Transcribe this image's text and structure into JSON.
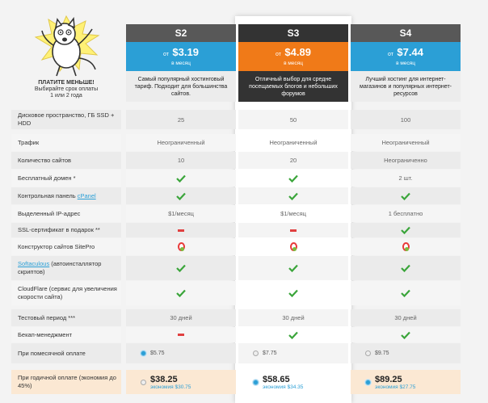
{
  "promo": {
    "title": "ПЛАТИТЕ МЕНЬШЕ!",
    "subtitle": "Выбирайте срок оплаты",
    "subtitle2": "1 или 2 года"
  },
  "plans": [
    {
      "name": "S2",
      "from": "от",
      "price": "$3.19",
      "per": "в месяц",
      "desc": "Самый популярный хостинговый тариф. Подходит для большинства сайтов."
    },
    {
      "name": "S3",
      "from": "от",
      "price": "$4.89",
      "per": "в месяц",
      "desc": "Отличный выбор для средне посещаемых блогов и небольших форумов"
    },
    {
      "name": "S4",
      "from": "от",
      "price": "$7.44",
      "per": "в месяц",
      "desc": "Лучший хостинг для интернет-магазинов и популярных интернет-ресурсов"
    }
  ],
  "rows": {
    "disk": {
      "label": "Дисковое пространство, ГБ SSD + HDD",
      "v": [
        "25",
        "50",
        "100"
      ]
    },
    "traffic": {
      "label": "Трафик",
      "v": [
        "Неограниченный",
        "Неограниченный",
        "Неограниченный"
      ]
    },
    "sites": {
      "label": "Количество сайтов",
      "v": [
        "10",
        "20",
        "Неограниченно"
      ]
    },
    "domain": {
      "label": "Бесплатный домен *",
      "v3": "2 шт."
    },
    "cpanel": {
      "label": "Контрольная панель ",
      "link": "cPanel"
    },
    "ip": {
      "label": "Выделенный IP-адрес",
      "v": [
        "$1/месяц",
        "$1/месяц",
        "1 бесплатно"
      ]
    },
    "ssl": {
      "label": "SSL-сертификат в подарок **"
    },
    "sitepro": {
      "label": "Конструктор сайтов SitePro"
    },
    "softaculous": {
      "link": "Softaculous",
      "label": " (автоинсталлятор скриптов)"
    },
    "cloudflare": {
      "label": "CloudFlare (сервис для увеличения скорости сайта)"
    },
    "trial": {
      "label": "Тестовый период ***",
      "v": [
        "30 дней",
        "30 дней",
        "30 дней"
      ]
    },
    "backup": {
      "label": "Бекап-менеджмент"
    },
    "monthly": {
      "label": "При помесячной оплате",
      "v": [
        "$5.75",
        "$7.75",
        "$9.75"
      ]
    },
    "yearly": {
      "label": "При годичной оплате (экономия до 45%)",
      "v": [
        "$38.25",
        "$58.65",
        "$89.25"
      ],
      "save": [
        "экономия $30.75",
        "экономия $34.35",
        "экономия $27.75"
      ]
    }
  },
  "colors": {
    "accent_blue": "#2b9fd6",
    "accent_orange": "#f07a18",
    "check_green": "#3aa53a",
    "dash_red": "#e04040"
  }
}
